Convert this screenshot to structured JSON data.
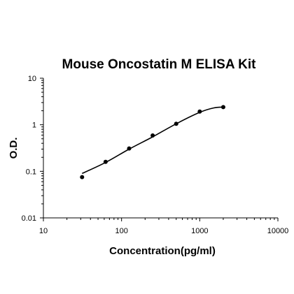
{
  "chart_data": {
    "type": "scatter",
    "title": "Mouse Oncostatin M ELISA Kit",
    "xlabel": "Concentration(pg/ml)",
    "ylabel": "O.D.",
    "x_scale": "log",
    "y_scale": "log",
    "xlim": [
      10,
      10000
    ],
    "ylim": [
      0.01,
      10
    ],
    "x_ticks": [
      "10",
      "100",
      "1000",
      "10000"
    ],
    "y_ticks": [
      "0.01",
      "0.1",
      "1",
      "10"
    ],
    "grid": false,
    "legend": "none",
    "series": [
      {
        "points": [
          {
            "x": 31.25,
            "y": 0.075
          },
          {
            "x": 62.5,
            "y": 0.16
          },
          {
            "x": 125,
            "y": 0.31
          },
          {
            "x": 250,
            "y": 0.59
          },
          {
            "x": 500,
            "y": 1.05
          },
          {
            "x": 1000,
            "y": 1.92
          },
          {
            "x": 2000,
            "y": 2.4
          }
        ],
        "fit_curve": [
          {
            "x": 31.25,
            "y": 0.09
          },
          {
            "x": 62.5,
            "y": 0.155
          },
          {
            "x": 125,
            "y": 0.3
          },
          {
            "x": 250,
            "y": 0.55
          },
          {
            "x": 500,
            "y": 1.05
          },
          {
            "x": 1000,
            "y": 1.85
          },
          {
            "x": 1500,
            "y": 2.3
          },
          {
            "x": 2000,
            "y": 2.4
          }
        ],
        "color": "#000000"
      }
    ]
  }
}
